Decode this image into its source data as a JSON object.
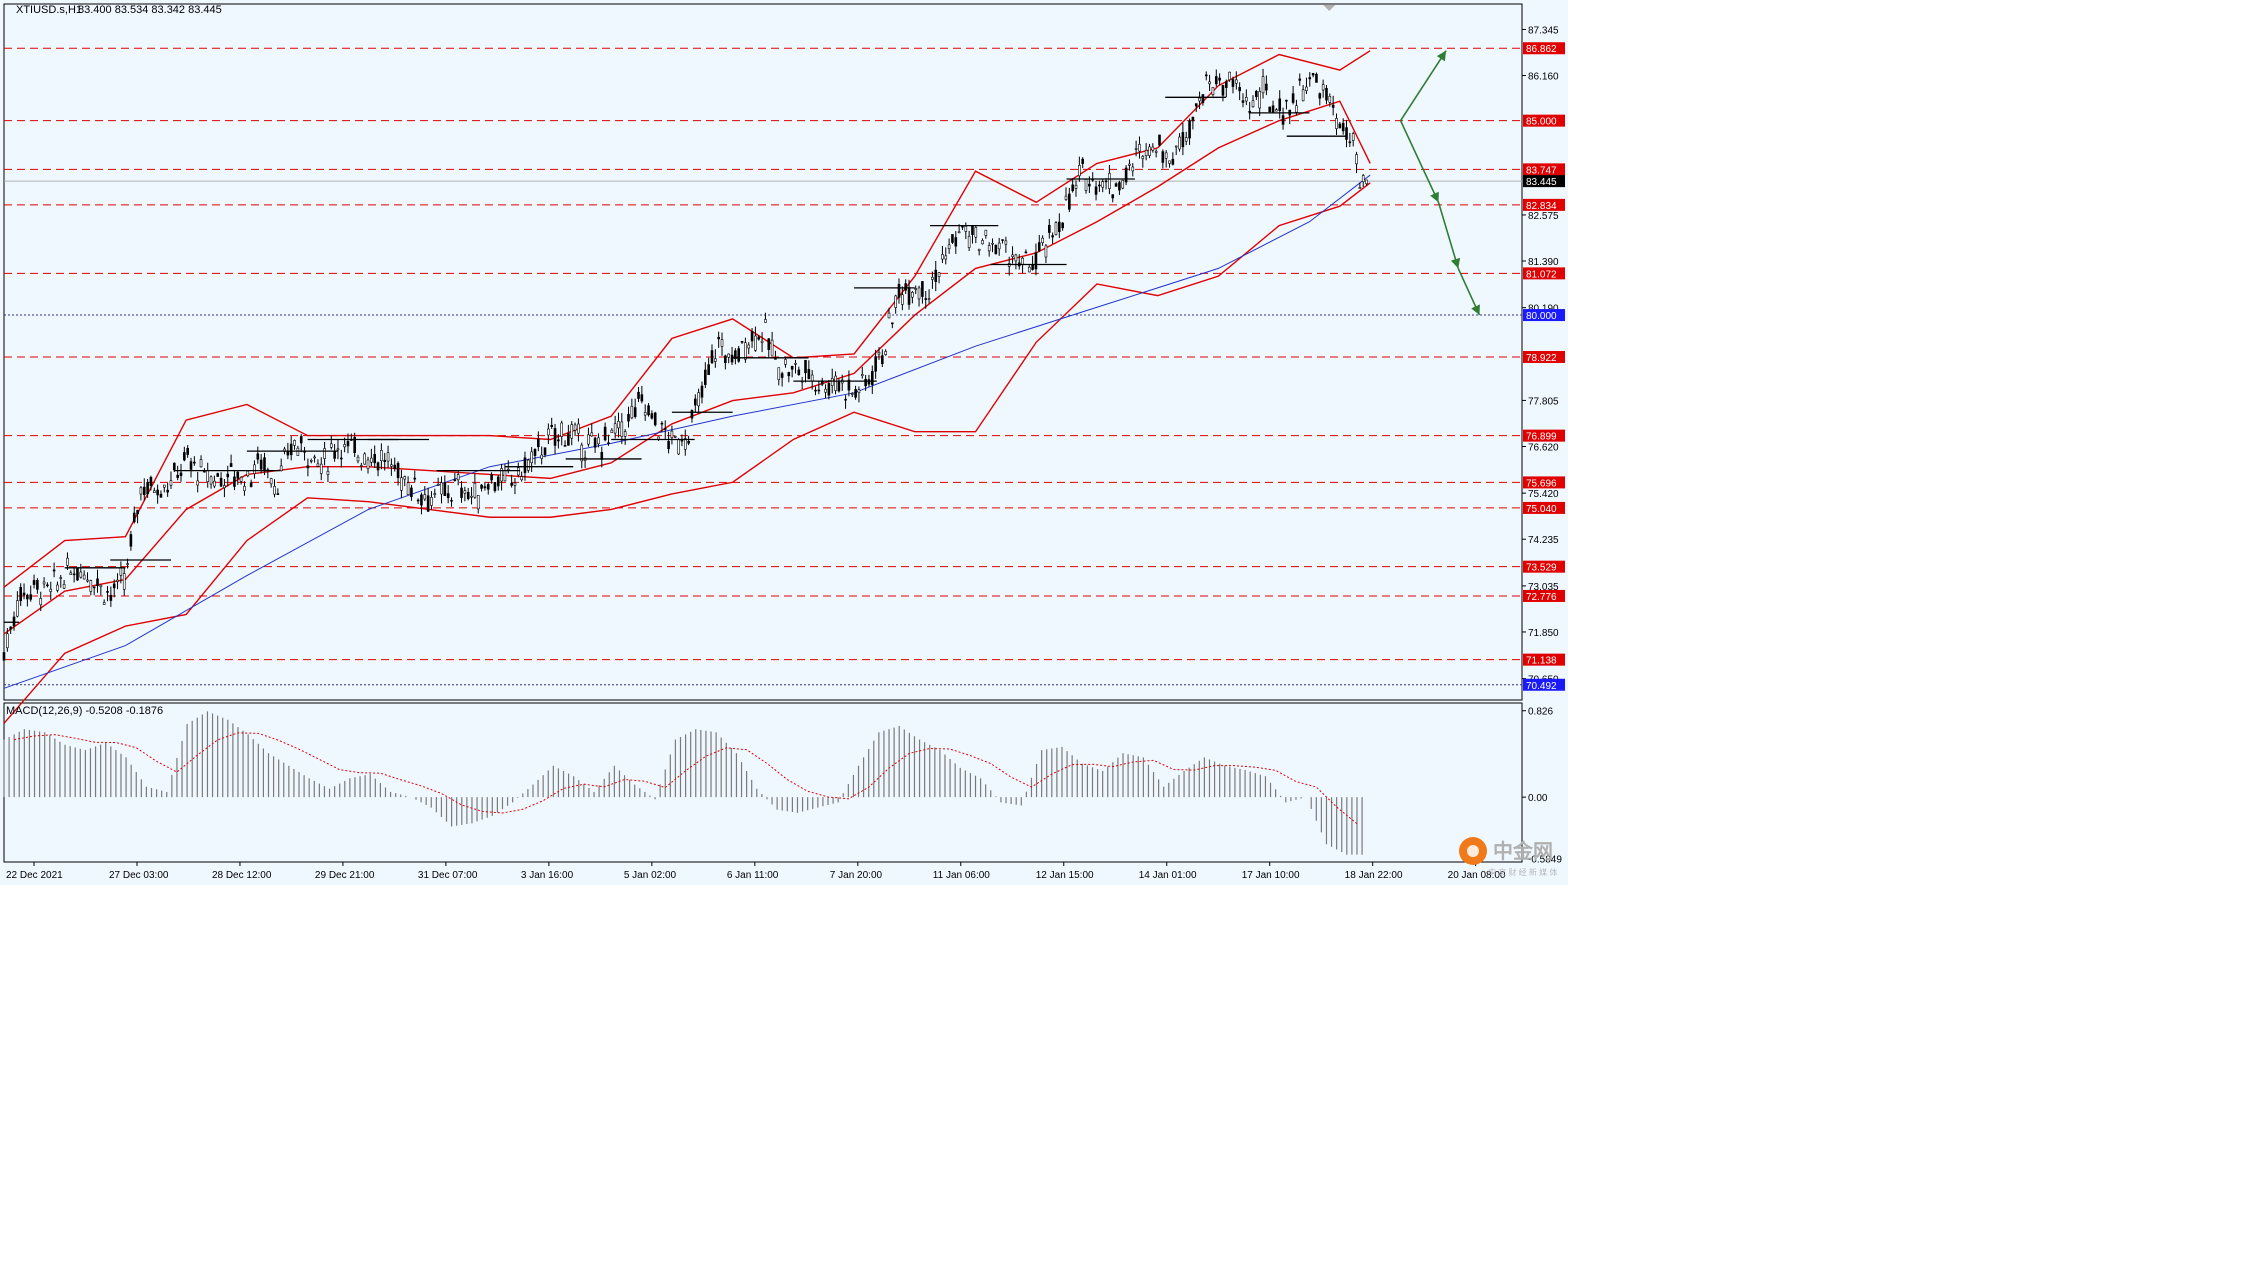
{
  "header": {
    "symbol": "XTIUSD.s,H1",
    "ohlc": "83.400 83.534 83.342 83.445"
  },
  "macd": {
    "label": "MACD(12,26,9) -0.5208 -0.1876",
    "axis_ticks": [
      "0.826",
      "0.00",
      "-0.5849"
    ]
  },
  "watermark": {
    "text": "中金网",
    "sub": "中 文 财 经 新 媒 体"
  },
  "colors": {
    "background": "#f0f8ff",
    "grid_line": "#c0c0c0",
    "price_bg": "#000000",
    "bollinger": "#e00000",
    "ma": "#2233cc",
    "level_line": "#e00000",
    "level_label_bg": "#e00000",
    "blue_label_bg": "#1a1aff",
    "arrow": "#2e7d32",
    "macd_hist": "#7a7a7a",
    "macd_signal": "#e00000"
  },
  "chart_data": {
    "type": "candlestick",
    "title": "XTIUSD.s,H1",
    "x_ticks": [
      "22 Dec 2021",
      "27 Dec 03:00",
      "28 Dec 12:00",
      "29 Dec 21:00",
      "31 Dec 07:00",
      "3 Jan 16:00",
      "5 Jan 02:00",
      "6 Jan 11:00",
      "7 Jan 20:00",
      "11 Jan 06:00",
      "12 Jan 15:00",
      "14 Jan 01:00",
      "17 Jan 10:00",
      "18 Jan 22:00",
      "20 Jan 08:00"
    ],
    "y_ticks": [
      "87.345",
      "86.160",
      "82.575",
      "81.390",
      "80.190",
      "77.805",
      "76.620",
      "75.420",
      "74.235",
      "73.035",
      "71.850",
      "70.650"
    ],
    "ylim": [
      70.1,
      88.0
    ],
    "current_price": 83.445,
    "levels_red": [
      86.862,
      85.0,
      83.747,
      82.834,
      81.072,
      78.922,
      76.899,
      75.696,
      75.04,
      73.529,
      72.776,
      71.138
    ],
    "levels_blue": [
      80.0,
      70.492
    ],
    "level_labels_red": [
      "86.862",
      "85.000",
      "83.747",
      "82.834",
      "81.072",
      "78.922",
      "76.899",
      "75.696",
      "75.040",
      "73.529",
      "72.776",
      "71.138"
    ],
    "level_labels_blue": [
      "80.000",
      "70.492"
    ],
    "current_price_label": "83.445",
    "price_path": [
      [
        0,
        71.3
      ],
      [
        10,
        72.8
      ],
      [
        20,
        73.0
      ],
      [
        30,
        72.9
      ],
      [
        40,
        73.3
      ],
      [
        50,
        73.5
      ],
      [
        60,
        73.2
      ],
      [
        70,
        72.8
      ],
      [
        80,
        73.2
      ],
      [
        90,
        75.6
      ],
      [
        100,
        75.6
      ],
      [
        110,
        75.7
      ],
      [
        120,
        76.3
      ],
      [
        130,
        75.9
      ],
      [
        140,
        75.8
      ],
      [
        150,
        75.9
      ],
      [
        160,
        75.8
      ],
      [
        170,
        76.3
      ],
      [
        180,
        75.6
      ],
      [
        190,
        76.7
      ],
      [
        200,
        76.5
      ],
      [
        210,
        76.1
      ],
      [
        220,
        76.7
      ],
      [
        230,
        76.5
      ],
      [
        240,
        76.4
      ],
      [
        250,
        76.3
      ],
      [
        260,
        75.9
      ],
      [
        270,
        75.6
      ],
      [
        280,
        75.3
      ],
      [
        290,
        75.4
      ],
      [
        300,
        75.6
      ],
      [
        310,
        75.3
      ],
      [
        320,
        75.8
      ],
      [
        330,
        75.7
      ],
      [
        340,
        75.9
      ],
      [
        350,
        76.4
      ],
      [
        360,
        76.8
      ],
      [
        370,
        77.0
      ],
      [
        380,
        76.7
      ],
      [
        390,
        76.6
      ],
      [
        400,
        76.9
      ],
      [
        410,
        77.2
      ],
      [
        420,
        77.8
      ],
      [
        430,
        77.2
      ],
      [
        440,
        76.7
      ],
      [
        450,
        76.9
      ],
      [
        460,
        78.0
      ],
      [
        470,
        79.3
      ],
      [
        480,
        78.8
      ],
      [
        490,
        79.4
      ],
      [
        500,
        79.6
      ],
      [
        510,
        78.7
      ],
      [
        520,
        78.6
      ],
      [
        530,
        78.5
      ],
      [
        540,
        78.2
      ],
      [
        550,
        78.3
      ],
      [
        560,
        78.0
      ],
      [
        570,
        78.4
      ],
      [
        580,
        79.2
      ],
      [
        590,
        80.6
      ],
      [
        600,
        80.8
      ],
      [
        610,
        80.7
      ],
      [
        620,
        81.5
      ],
      [
        630,
        82.2
      ],
      [
        640,
        81.9
      ],
      [
        650,
        81.8
      ],
      [
        660,
        81.7
      ],
      [
        670,
        81.2
      ],
      [
        680,
        81.4
      ],
      [
        690,
        82.0
      ],
      [
        700,
        82.8
      ],
      [
        710,
        83.6
      ],
      [
        720,
        83.5
      ],
      [
        730,
        83.3
      ],
      [
        740,
        83.6
      ],
      [
        750,
        84.3
      ],
      [
        760,
        84.4
      ],
      [
        770,
        84.0
      ],
      [
        780,
        84.9
      ],
      [
        790,
        85.8
      ],
      [
        800,
        86.0
      ],
      [
        810,
        85.9
      ],
      [
        820,
        85.4
      ],
      [
        830,
        85.7
      ],
      [
        840,
        85.2
      ],
      [
        850,
        85.5
      ],
      [
        860,
        86.1
      ],
      [
        870,
        85.7
      ],
      [
        880,
        84.9
      ],
      [
        890,
        84.2
      ],
      [
        894,
        83.0
      ],
      [
        898,
        83.445
      ]
    ],
    "bands": {
      "upper": [
        [
          0,
          73.0
        ],
        [
          40,
          74.2
        ],
        [
          80,
          74.3
        ],
        [
          120,
          77.3
        ],
        [
          160,
          77.7
        ],
        [
          200,
          76.9
        ],
        [
          240,
          76.9
        ],
        [
          280,
          76.9
        ],
        [
          320,
          76.9
        ],
        [
          360,
          76.8
        ],
        [
          400,
          77.4
        ],
        [
          440,
          79.4
        ],
        [
          480,
          79.9
        ],
        [
          520,
          78.9
        ],
        [
          560,
          79.0
        ],
        [
          600,
          81.0
        ],
        [
          640,
          83.7
        ],
        [
          680,
          82.9
        ],
        [
          720,
          83.9
        ],
        [
          760,
          84.3
        ],
        [
          800,
          85.9
        ],
        [
          840,
          86.7
        ],
        [
          880,
          86.3
        ],
        [
          900,
          86.8
        ]
      ],
      "middle": [
        [
          0,
          71.8
        ],
        [
          40,
          72.9
        ],
        [
          80,
          73.2
        ],
        [
          120,
          75.0
        ],
        [
          160,
          75.9
        ],
        [
          200,
          76.1
        ],
        [
          240,
          76.1
        ],
        [
          280,
          76.0
        ],
        [
          320,
          75.9
        ],
        [
          360,
          75.8
        ],
        [
          400,
          76.2
        ],
        [
          440,
          77.2
        ],
        [
          480,
          77.8
        ],
        [
          520,
          78.0
        ],
        [
          560,
          78.5
        ],
        [
          600,
          80.0
        ],
        [
          640,
          81.2
        ],
        [
          680,
          81.6
        ],
        [
          720,
          82.4
        ],
        [
          760,
          83.3
        ],
        [
          800,
          84.3
        ],
        [
          840,
          85.0
        ],
        [
          880,
          85.5
        ],
        [
          900,
          83.9
        ]
      ],
      "lower": [
        [
          0,
          69.5
        ],
        [
          40,
          71.3
        ],
        [
          80,
          72.0
        ],
        [
          120,
          72.3
        ],
        [
          160,
          74.2
        ],
        [
          200,
          75.3
        ],
        [
          240,
          75.2
        ],
        [
          280,
          75.0
        ],
        [
          320,
          74.8
        ],
        [
          360,
          74.8
        ],
        [
          400,
          75.0
        ],
        [
          440,
          75.4
        ],
        [
          480,
          75.7
        ],
        [
          520,
          76.8
        ],
        [
          560,
          77.5
        ],
        [
          600,
          77.0
        ],
        [
          640,
          77.0
        ],
        [
          680,
          79.3
        ],
        [
          720,
          80.8
        ],
        [
          760,
          80.5
        ],
        [
          800,
          81.0
        ],
        [
          840,
          82.3
        ],
        [
          880,
          82.8
        ],
        [
          900,
          83.4
        ]
      ]
    },
    "ma": [
      [
        0,
        70.4
      ],
      [
        80,
        71.5
      ],
      [
        160,
        73.3
      ],
      [
        240,
        75.0
      ],
      [
        320,
        76.1
      ],
      [
        400,
        76.7
      ],
      [
        480,
        77.4
      ],
      [
        560,
        78.0
      ],
      [
        640,
        79.2
      ],
      [
        720,
        80.2
      ],
      [
        800,
        81.2
      ],
      [
        860,
        82.4
      ],
      [
        900,
        83.6
      ]
    ],
    "scenario_arrows": [
      {
        "from": [
          920,
          85.0
        ],
        "to": [
          950,
          86.8
        ]
      },
      {
        "from": [
          920,
          85.0
        ],
        "to": [
          945,
          82.9
        ]
      },
      {
        "from": [
          945,
          82.9
        ],
        "to": [
          958,
          81.2
        ]
      },
      {
        "from": [
          958,
          81.2
        ],
        "to": [
          972,
          80.0
        ]
      }
    ],
    "macd_ylim": [
      -0.62,
      0.9
    ],
    "macd_hist": [
      0.55,
      0.65,
      0.62,
      0.5,
      0.45,
      0.52,
      0.38,
      0.1,
      0.05,
      0.7,
      0.82,
      0.74,
      0.6,
      0.42,
      0.3,
      0.18,
      0.08,
      0.18,
      0.22,
      0.05,
      0.0,
      -0.1,
      -0.28,
      -0.25,
      -0.18,
      -0.05,
      0.12,
      0.3,
      0.2,
      0.05,
      0.3,
      0.12,
      -0.02,
      0.55,
      0.65,
      0.62,
      0.42,
      0.08,
      -0.12,
      -0.15,
      -0.1,
      -0.05,
      0.3,
      0.62,
      0.68,
      0.55,
      0.45,
      0.28,
      0.18,
      -0.05,
      -0.08,
      0.45,
      0.48,
      0.32,
      0.25,
      0.42,
      0.38,
      0.1,
      0.25,
      0.38,
      0.3,
      0.26,
      0.2,
      -0.05,
      0.0,
      -0.45,
      -0.55
    ]
  }
}
